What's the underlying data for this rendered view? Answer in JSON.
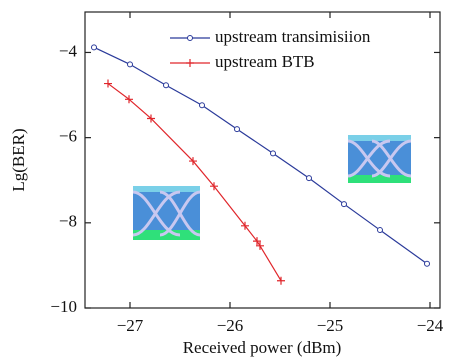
{
  "chart_data": {
    "type": "line",
    "x_label": "Received power (dBm)",
    "y_label": "Lg(BER)",
    "xlim": [
      -27.45,
      -23.9
    ],
    "ylim": [
      -10,
      -3.05
    ],
    "xticks": [
      {
        "value": -27,
        "label": "−27"
      },
      {
        "value": -26,
        "label": "−26"
      },
      {
        "value": -25,
        "label": "−25"
      },
      {
        "value": -24,
        "label": "−24"
      }
    ],
    "yticks": [
      {
        "value": -10,
        "label": "−10"
      },
      {
        "value": -8,
        "label": "−8"
      },
      {
        "value": -6,
        "label": "−6"
      },
      {
        "value": -4,
        "label": "−4"
      }
    ],
    "legend": "top-right",
    "series": [
      {
        "name": "upstream transimisiion",
        "color": "#2a3a9a",
        "marker": "circle",
        "x": [
          -27.36,
          -27.0,
          -26.64,
          -26.28,
          -25.93,
          -25.57,
          -25.21,
          -24.86,
          -24.5,
          -24.03
        ],
        "values": [
          -3.88,
          -4.28,
          -4.77,
          -5.24,
          -5.8,
          -6.37,
          -6.95,
          -7.56,
          -8.17,
          -8.96
        ]
      },
      {
        "name": "upstream BTB",
        "color": "#e0262b",
        "marker": "plus",
        "x": [
          -27.22,
          -27.01,
          -26.79,
          -26.37,
          -26.16,
          -25.85,
          -25.73,
          -25.7,
          -25.49
        ],
        "values": [
          -4.73,
          -5.1,
          -5.55,
          -6.55,
          -7.14,
          -8.07,
          -8.43,
          -8.54,
          -9.36
        ]
      }
    ]
  }
}
